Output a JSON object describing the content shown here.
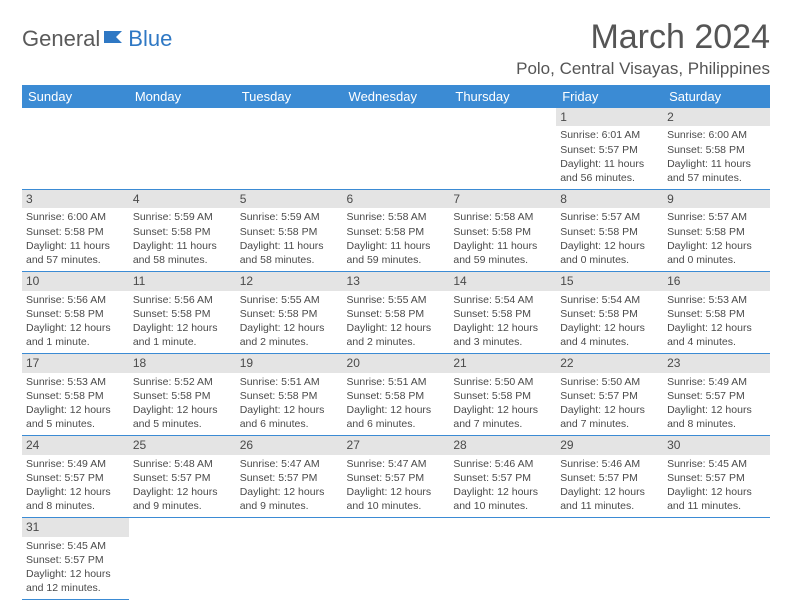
{
  "logo": {
    "part1": "General",
    "part2": "Blue"
  },
  "title": "March 2024",
  "location": "Polo, Central Visayas, Philippines",
  "colors": {
    "header_bg": "#3b8bd4",
    "header_text": "#ffffff",
    "daynum_bg": "#e4e4e4",
    "row_border": "#3b8bd4",
    "body_text": "#4a4a4a",
    "logo_accent": "#2f78c4"
  },
  "day_headers": [
    "Sunday",
    "Monday",
    "Tuesday",
    "Wednesday",
    "Thursday",
    "Friday",
    "Saturday"
  ],
  "leading_blanks": 5,
  "days": [
    {
      "n": "1",
      "sunrise": "Sunrise: 6:01 AM",
      "sunset": "Sunset: 5:57 PM",
      "daylight": "Daylight: 11 hours and 56 minutes."
    },
    {
      "n": "2",
      "sunrise": "Sunrise: 6:00 AM",
      "sunset": "Sunset: 5:58 PM",
      "daylight": "Daylight: 11 hours and 57 minutes."
    },
    {
      "n": "3",
      "sunrise": "Sunrise: 6:00 AM",
      "sunset": "Sunset: 5:58 PM",
      "daylight": "Daylight: 11 hours and 57 minutes."
    },
    {
      "n": "4",
      "sunrise": "Sunrise: 5:59 AM",
      "sunset": "Sunset: 5:58 PM",
      "daylight": "Daylight: 11 hours and 58 minutes."
    },
    {
      "n": "5",
      "sunrise": "Sunrise: 5:59 AM",
      "sunset": "Sunset: 5:58 PM",
      "daylight": "Daylight: 11 hours and 58 minutes."
    },
    {
      "n": "6",
      "sunrise": "Sunrise: 5:58 AM",
      "sunset": "Sunset: 5:58 PM",
      "daylight": "Daylight: 11 hours and 59 minutes."
    },
    {
      "n": "7",
      "sunrise": "Sunrise: 5:58 AM",
      "sunset": "Sunset: 5:58 PM",
      "daylight": "Daylight: 11 hours and 59 minutes."
    },
    {
      "n": "8",
      "sunrise": "Sunrise: 5:57 AM",
      "sunset": "Sunset: 5:58 PM",
      "daylight": "Daylight: 12 hours and 0 minutes."
    },
    {
      "n": "9",
      "sunrise": "Sunrise: 5:57 AM",
      "sunset": "Sunset: 5:58 PM",
      "daylight": "Daylight: 12 hours and 0 minutes."
    },
    {
      "n": "10",
      "sunrise": "Sunrise: 5:56 AM",
      "sunset": "Sunset: 5:58 PM",
      "daylight": "Daylight: 12 hours and 1 minute."
    },
    {
      "n": "11",
      "sunrise": "Sunrise: 5:56 AM",
      "sunset": "Sunset: 5:58 PM",
      "daylight": "Daylight: 12 hours and 1 minute."
    },
    {
      "n": "12",
      "sunrise": "Sunrise: 5:55 AM",
      "sunset": "Sunset: 5:58 PM",
      "daylight": "Daylight: 12 hours and 2 minutes."
    },
    {
      "n": "13",
      "sunrise": "Sunrise: 5:55 AM",
      "sunset": "Sunset: 5:58 PM",
      "daylight": "Daylight: 12 hours and 2 minutes."
    },
    {
      "n": "14",
      "sunrise": "Sunrise: 5:54 AM",
      "sunset": "Sunset: 5:58 PM",
      "daylight": "Daylight: 12 hours and 3 minutes."
    },
    {
      "n": "15",
      "sunrise": "Sunrise: 5:54 AM",
      "sunset": "Sunset: 5:58 PM",
      "daylight": "Daylight: 12 hours and 4 minutes."
    },
    {
      "n": "16",
      "sunrise": "Sunrise: 5:53 AM",
      "sunset": "Sunset: 5:58 PM",
      "daylight": "Daylight: 12 hours and 4 minutes."
    },
    {
      "n": "17",
      "sunrise": "Sunrise: 5:53 AM",
      "sunset": "Sunset: 5:58 PM",
      "daylight": "Daylight: 12 hours and 5 minutes."
    },
    {
      "n": "18",
      "sunrise": "Sunrise: 5:52 AM",
      "sunset": "Sunset: 5:58 PM",
      "daylight": "Daylight: 12 hours and 5 minutes."
    },
    {
      "n": "19",
      "sunrise": "Sunrise: 5:51 AM",
      "sunset": "Sunset: 5:58 PM",
      "daylight": "Daylight: 12 hours and 6 minutes."
    },
    {
      "n": "20",
      "sunrise": "Sunrise: 5:51 AM",
      "sunset": "Sunset: 5:58 PM",
      "daylight": "Daylight: 12 hours and 6 minutes."
    },
    {
      "n": "21",
      "sunrise": "Sunrise: 5:50 AM",
      "sunset": "Sunset: 5:58 PM",
      "daylight": "Daylight: 12 hours and 7 minutes."
    },
    {
      "n": "22",
      "sunrise": "Sunrise: 5:50 AM",
      "sunset": "Sunset: 5:57 PM",
      "daylight": "Daylight: 12 hours and 7 minutes."
    },
    {
      "n": "23",
      "sunrise": "Sunrise: 5:49 AM",
      "sunset": "Sunset: 5:57 PM",
      "daylight": "Daylight: 12 hours and 8 minutes."
    },
    {
      "n": "24",
      "sunrise": "Sunrise: 5:49 AM",
      "sunset": "Sunset: 5:57 PM",
      "daylight": "Daylight: 12 hours and 8 minutes."
    },
    {
      "n": "25",
      "sunrise": "Sunrise: 5:48 AM",
      "sunset": "Sunset: 5:57 PM",
      "daylight": "Daylight: 12 hours and 9 minutes."
    },
    {
      "n": "26",
      "sunrise": "Sunrise: 5:47 AM",
      "sunset": "Sunset: 5:57 PM",
      "daylight": "Daylight: 12 hours and 9 minutes."
    },
    {
      "n": "27",
      "sunrise": "Sunrise: 5:47 AM",
      "sunset": "Sunset: 5:57 PM",
      "daylight": "Daylight: 12 hours and 10 minutes."
    },
    {
      "n": "28",
      "sunrise": "Sunrise: 5:46 AM",
      "sunset": "Sunset: 5:57 PM",
      "daylight": "Daylight: 12 hours and 10 minutes."
    },
    {
      "n": "29",
      "sunrise": "Sunrise: 5:46 AM",
      "sunset": "Sunset: 5:57 PM",
      "daylight": "Daylight: 12 hours and 11 minutes."
    },
    {
      "n": "30",
      "sunrise": "Sunrise: 5:45 AM",
      "sunset": "Sunset: 5:57 PM",
      "daylight": "Daylight: 12 hours and 11 minutes."
    },
    {
      "n": "31",
      "sunrise": "Sunrise: 5:45 AM",
      "sunset": "Sunset: 5:57 PM",
      "daylight": "Daylight: 12 hours and 12 minutes."
    }
  ]
}
